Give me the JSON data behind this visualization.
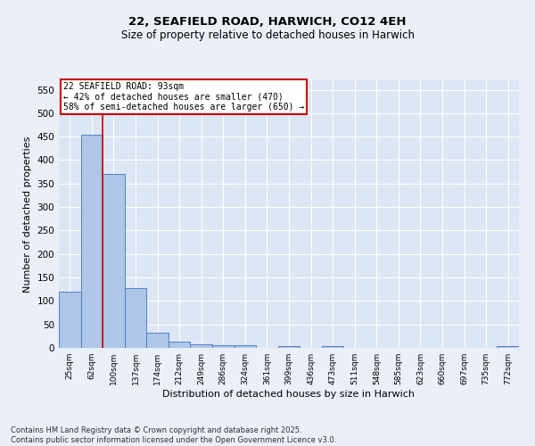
{
  "title1": "22, SEAFIELD ROAD, HARWICH, CO12 4EH",
  "title2": "Size of property relative to detached houses in Harwich",
  "xlabel": "Distribution of detached houses by size in Harwich",
  "ylabel": "Number of detached properties",
  "categories": [
    "25sqm",
    "62sqm",
    "100sqm",
    "137sqm",
    "174sqm",
    "212sqm",
    "249sqm",
    "286sqm",
    "324sqm",
    "361sqm",
    "399sqm",
    "436sqm",
    "473sqm",
    "511sqm",
    "548sqm",
    "585sqm",
    "623sqm",
    "660sqm",
    "697sqm",
    "735sqm",
    "772sqm"
  ],
  "values": [
    120,
    455,
    370,
    127,
    33,
    13,
    8,
    5,
    6,
    0,
    3,
    0,
    3,
    0,
    0,
    0,
    0,
    0,
    0,
    0,
    3
  ],
  "bar_color": "#aec6e8",
  "bar_edge_color": "#4472c4",
  "vline_x": 1.5,
  "annotation_title": "22 SEAFIELD ROAD: 93sqm",
  "annotation_line1": "← 42% of detached houses are smaller (470)",
  "annotation_line2": "58% of semi-detached houses are larger (650) →",
  "annotation_box_color": "#cc0000",
  "vline_color": "#cc0000",
  "footer1": "Contains HM Land Registry data © Crown copyright and database right 2025.",
  "footer2": "Contains public sector information licensed under the Open Government Licence v3.0.",
  "bg_color": "#eaeff8",
  "plot_bg_color": "#dce6f4",
  "grid_color": "#ffffff",
  "ylim": [
    0,
    570
  ],
  "yticks": [
    0,
    50,
    100,
    150,
    200,
    250,
    300,
    350,
    400,
    450,
    500,
    550
  ]
}
